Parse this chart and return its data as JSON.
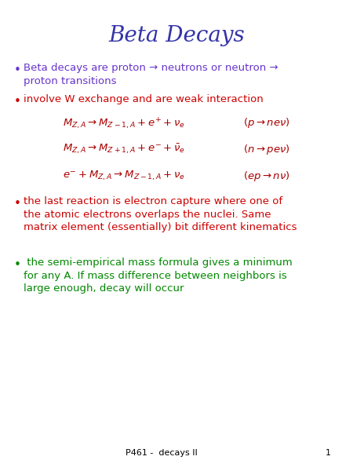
{
  "title": "Beta Decays",
  "title_color": "#3333aa",
  "title_fontsize": 20,
  "bullet_color_purple": "#6633cc",
  "bullet_color_red": "#cc0000",
  "bullet_color_green": "#008800",
  "bullet1_text": "Beta decays are proton → neutrons or neutron →\nproton transitions",
  "bullet2_text": "involve W exchange and are weak interaction",
  "bullet3_text": "the last reaction is electron capture where one of\nthe atomic electrons overlaps the nuclei. Same\nmatrix element (essentially) bit different kinematics",
  "bullet4_text": " the semi-empirical mass formula gives a minimum\nfor any A. If mass difference between neighbors is\nlarge enough, decay will occur",
  "footer_text": "P461 -  decays II",
  "footer_number": "1",
  "bg_color": "#ffffff",
  "eq_fontsize": 9.5,
  "text_fontsize": 9.5,
  "bullet_fontsize": 11
}
